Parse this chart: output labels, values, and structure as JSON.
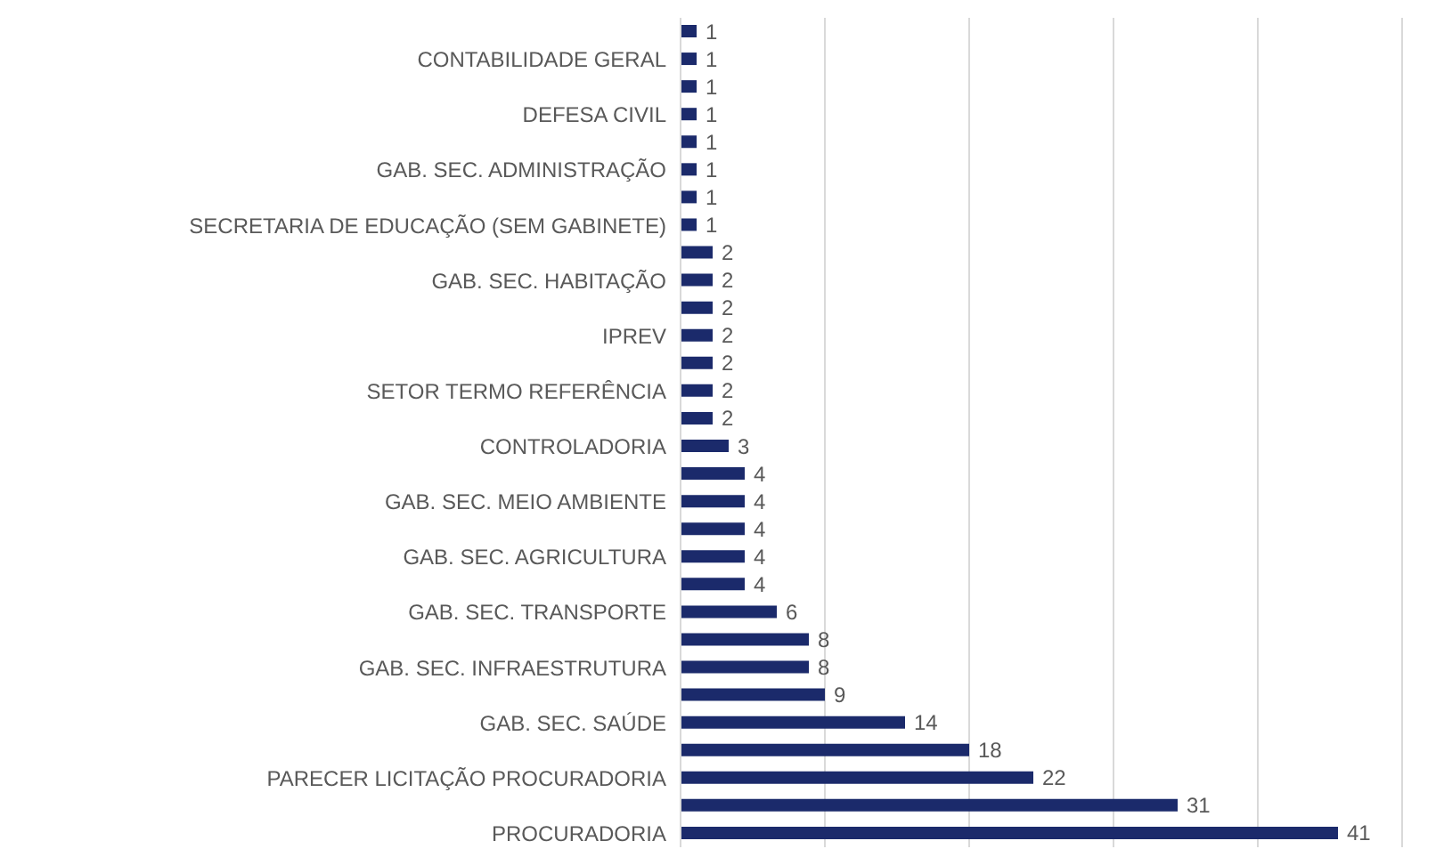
{
  "chart_data": {
    "type": "bar",
    "orientation": "horizontal",
    "categories": [
      null,
      "CONTABILIDADE GERAL",
      null,
      "DEFESA CIVIL",
      null,
      "GAB. SEC. ADMINISTRAÇÃO",
      null,
      "SECRETARIA DE EDUCAÇÃO (SEM GABINETE)",
      null,
      "GAB. SEC. HABITAÇÃO",
      null,
      "IPREV",
      null,
      "SETOR TERMO REFERÊNCIA",
      null,
      "CONTROLADORIA",
      null,
      "GAB. SEC. MEIO AMBIENTE",
      null,
      "GAB. SEC. AGRICULTURA",
      null,
      "GAB. SEC. TRANSPORTE",
      null,
      "GAB. SEC. INFRAESTRUTURA",
      null,
      "GAB. SEC. SAÚDE",
      null,
      "PARECER LICITAÇÃO PROCURADORIA",
      null,
      "PROCURADORIA"
    ],
    "values": [
      1,
      1,
      1,
      1,
      1,
      1,
      1,
      1,
      2,
      2,
      2,
      2,
      2,
      2,
      2,
      3,
      4,
      4,
      4,
      4,
      4,
      6,
      8,
      8,
      9,
      14,
      18,
      22,
      31,
      41
    ],
    "color": "#1b2a6b",
    "tick_labels": "y",
    "grid": "x",
    "data_labels": true
  }
}
